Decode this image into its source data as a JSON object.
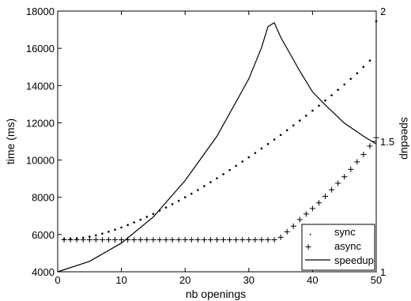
{
  "chart_data": {
    "type": "line",
    "title": "",
    "xlabel": "nb openings",
    "ylabel": "time (ms)",
    "ylabel_right": "speedup",
    "xlim": [
      0,
      50
    ],
    "ylim": [
      4000,
      18000
    ],
    "ylim_right": [
      1,
      2
    ],
    "x_ticks": [
      "0",
      "10",
      "20",
      "30",
      "40",
      "50"
    ],
    "y_ticks": [
      "4000",
      "6000",
      "8000",
      "10000",
      "12000",
      "14000",
      "16000",
      "18000"
    ],
    "y_right_ticks": [
      "1",
      "1.5",
      "2"
    ],
    "grid": false,
    "legend_position": "bottom-right",
    "x": [
      1,
      2,
      3,
      4,
      5,
      6,
      7,
      8,
      9,
      10,
      11,
      12,
      13,
      14,
      15,
      16,
      17,
      18,
      19,
      20,
      21,
      22,
      23,
      24,
      25,
      26,
      27,
      28,
      29,
      30,
      31,
      32,
      33,
      34,
      35,
      36,
      37,
      38,
      39,
      40,
      41,
      42,
      43,
      44,
      45,
      46,
      47,
      48,
      49,
      50
    ],
    "series": [
      {
        "name": "sync",
        "marker": "dot",
        "axis": "left",
        "values": [
          5750,
          5765,
          5790,
          5830,
          5890,
          5960,
          6050,
          6150,
          6260,
          6380,
          6510,
          6650,
          6800,
          6950,
          7110,
          7280,
          7450,
          7630,
          7810,
          8000,
          8190,
          8390,
          8600,
          8810,
          9020,
          9240,
          9460,
          9690,
          9920,
          10150,
          10380,
          10620,
          10860,
          11100,
          11350,
          11600,
          11860,
          12120,
          12380,
          12650,
          12920,
          13200,
          13480,
          13770,
          14060,
          14360,
          14660,
          15000,
          15340,
          17450
        ]
      },
      {
        "name": "async",
        "marker": "plus",
        "axis": "left",
        "values": [
          5720,
          5720,
          5720,
          5720,
          5720,
          5720,
          5720,
          5720,
          5720,
          5720,
          5720,
          5720,
          5720,
          5720,
          5720,
          5720,
          5720,
          5720,
          5720,
          5720,
          5720,
          5720,
          5720,
          5720,
          5720,
          5720,
          5720,
          5720,
          5720,
          5720,
          5720,
          5720,
          5720,
          5720,
          5850,
          6150,
          6450,
          6800,
          7100,
          7400,
          7700,
          8050,
          8400,
          8750,
          9100,
          9500,
          9900,
          10300,
          10750,
          11200
        ]
      },
      {
        "name": "speedup",
        "marker": "line",
        "axis": "right",
        "x": [
          0,
          5,
          10,
          15,
          20,
          25,
          30,
          32,
          33,
          34,
          35,
          38,
          40,
          42,
          45,
          48,
          50
        ],
        "values": [
          1.0,
          1.04,
          1.11,
          1.21,
          1.35,
          1.52,
          1.74,
          1.86,
          1.94,
          1.955,
          1.9,
          1.77,
          1.69,
          1.64,
          1.57,
          1.52,
          1.49
        ]
      }
    ]
  }
}
